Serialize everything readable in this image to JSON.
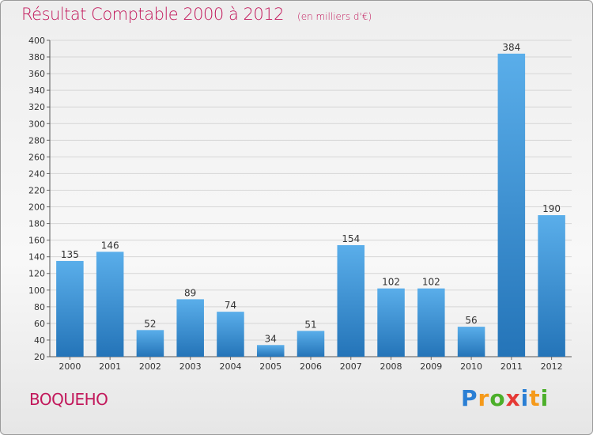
{
  "chart_data": {
    "type": "bar",
    "title": "Résultat Comptable 2000 à 2012",
    "subtitle": "(en milliers d'€)",
    "categories": [
      "2000",
      "2001",
      "2002",
      "2003",
      "2004",
      "2005",
      "2006",
      "2007",
      "2008",
      "2009",
      "2010",
      "2011",
      "2012"
    ],
    "values": [
      135,
      146,
      52,
      89,
      74,
      34,
      51,
      154,
      102,
      102,
      56,
      384,
      190
    ],
    "ylim": [
      20,
      400
    ],
    "yticks": [
      20,
      40,
      60,
      80,
      100,
      120,
      140,
      160,
      180,
      200,
      220,
      240,
      260,
      280,
      300,
      320,
      340,
      360,
      380,
      400
    ],
    "grid": true,
    "bar_color": "#3f96d8"
  },
  "commune": "BOQUEHO",
  "logo": {
    "text": "Proxiti",
    "letter_colors": [
      "#2a7fd4",
      "#f59a1b",
      "#4caf2a",
      "#e53935",
      "#2a7fd4",
      "#f59a1b",
      "#4caf2a"
    ]
  }
}
